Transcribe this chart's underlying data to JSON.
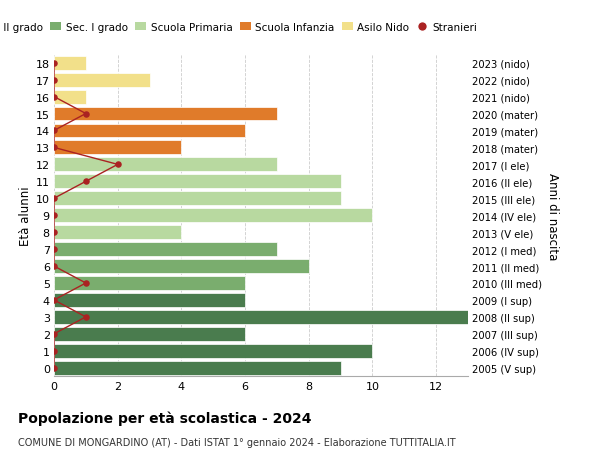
{
  "ages": [
    18,
    17,
    16,
    15,
    14,
    13,
    12,
    11,
    10,
    9,
    8,
    7,
    6,
    5,
    4,
    3,
    2,
    1,
    0
  ],
  "right_labels": [
    "2005 (V sup)",
    "2006 (IV sup)",
    "2007 (III sup)",
    "2008 (II sup)",
    "2009 (I sup)",
    "2010 (III med)",
    "2011 (II med)",
    "2012 (I med)",
    "2013 (V ele)",
    "2014 (IV ele)",
    "2015 (III ele)",
    "2016 (II ele)",
    "2017 (I ele)",
    "2018 (mater)",
    "2019 (mater)",
    "2020 (mater)",
    "2021 (nido)",
    "2022 (nido)",
    "2023 (nido)"
  ],
  "bar_values": [
    9,
    10,
    6,
    13,
    6,
    6,
    8,
    7,
    4,
    10,
    9,
    9,
    7,
    4,
    6,
    7,
    1,
    3,
    1
  ],
  "bar_colors": [
    "#4a7c4e",
    "#4a7c4e",
    "#4a7c4e",
    "#4a7c4e",
    "#4a7c4e",
    "#7aad6e",
    "#7aad6e",
    "#7aad6e",
    "#b8d9a0",
    "#b8d9a0",
    "#b8d9a0",
    "#b8d9a0",
    "#b8d9a0",
    "#e07b2a",
    "#e07b2a",
    "#e07b2a",
    "#f2e08a",
    "#f2e08a",
    "#f2e08a"
  ],
  "stranieri_x": [
    0,
    0,
    0,
    1,
    0,
    1,
    0,
    0,
    0,
    0,
    0,
    1,
    2,
    0,
    0,
    1,
    0,
    0,
    0
  ],
  "title_bold": "Popolazione per età scolastica - 2024",
  "subtitle": "COMUNE DI MONGARDINO (AT) - Dati ISTAT 1° gennaio 2024 - Elaborazione TUTTITALIA.IT",
  "ylabel_left": "Età alunni",
  "ylabel_right": "Anni di nascita",
  "xlim": [
    0,
    13
  ],
  "xticks": [
    0,
    2,
    4,
    6,
    8,
    10,
    12
  ],
  "legend_labels": [
    "Sec. II grado",
    "Sec. I grado",
    "Scuola Primaria",
    "Scuola Infanzia",
    "Asilo Nido",
    "Stranieri"
  ],
  "legend_colors": [
    "#4a7c4e",
    "#7aad6e",
    "#b8d9a0",
    "#e07b2a",
    "#f2e08a",
    "#aa2222"
  ],
  "color_stranieri": "#aa2222",
  "background_color": "#ffffff",
  "grid_color": "#cccccc"
}
